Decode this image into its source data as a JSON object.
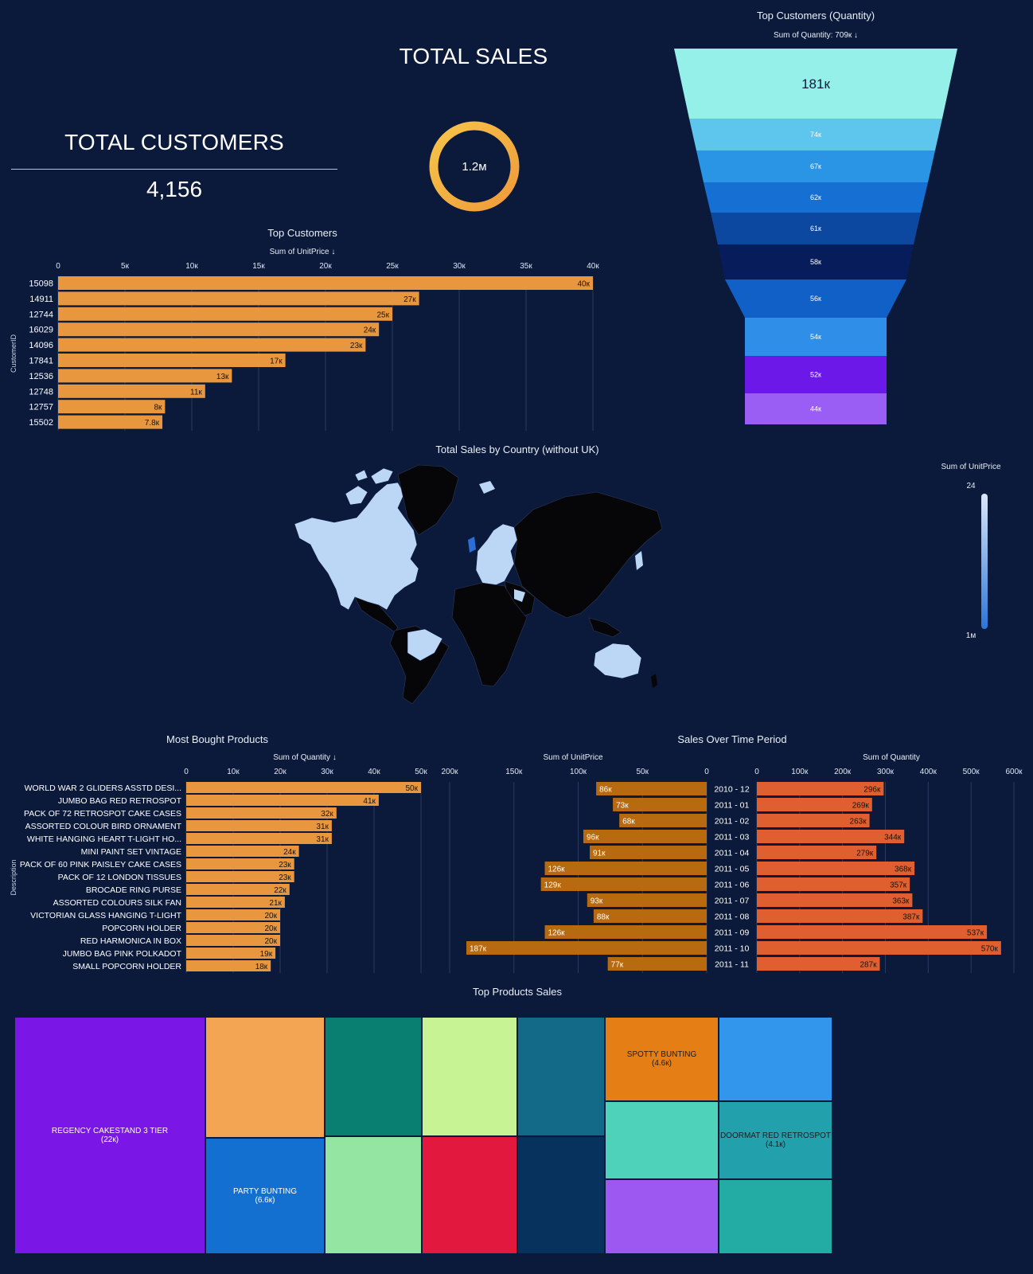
{
  "kpis": {
    "total_sales": {
      "title": "TOTAL SALES",
      "value": "1.2м"
    },
    "total_customers": {
      "title": "TOTAL CUSTOMERS",
      "value": "4,156"
    }
  },
  "colors": {
    "background": "#0b1a3a",
    "bar_orange": "#e8973e",
    "bar_dark_orange": "#b86a10",
    "bar_red_orange": "#e05f30",
    "gauge_start": "#f6c54a",
    "gauge_end": "#f09a3a",
    "map_land_dark": "#060608",
    "map_land_light": "#bcd6f5",
    "map_land_accent": "#2a6fd6"
  },
  "chart_data": [
    {
      "id": "top_customers",
      "type": "bar",
      "orientation": "horizontal",
      "title": "Top Customers",
      "subtitle": "Sum of UnitPrice ↓",
      "ylabel": "CustomerID",
      "xlim": [
        0,
        40000
      ],
      "x_ticks": [
        "0",
        "5к",
        "10к",
        "15к",
        "20к",
        "25к",
        "30к",
        "35к",
        "40к"
      ],
      "categories": [
        "15098",
        "14911",
        "12744",
        "16029",
        "14096",
        "17841",
        "12536",
        "12748",
        "12757",
        "15502"
      ],
      "values": [
        40000,
        27000,
        25000,
        24000,
        23000,
        17000,
        13000,
        11000,
        8000,
        7800
      ],
      "labels": [
        "40к",
        "27к",
        "25к",
        "24к",
        "23к",
        "17к",
        "13к",
        "11к",
        "8к",
        "7.8к"
      ]
    },
    {
      "id": "top_customers_quantity",
      "type": "funnel",
      "title": "Top Customers (Quantity)",
      "subtitle": "Sum of Quantity: 709к ↓",
      "values": [
        181000,
        74000,
        67000,
        62000,
        61000,
        58000,
        56000,
        54000,
        52000,
        44000
      ],
      "labels": [
        "181к",
        "74к",
        "67к",
        "62к",
        "61к",
        "58к",
        "56к",
        "54к",
        "52к",
        "44к"
      ],
      "colors": [
        "#95f0ea",
        "#5ec5ec",
        "#2a95e4",
        "#1670d4",
        "#0d48a0",
        "#071c5a",
        "#1060c8",
        "#2f8fe8",
        "#6c18e8",
        "#9b5ef5"
      ]
    },
    {
      "id": "sales_by_country",
      "type": "choropleth",
      "title": "Total Sales by Country (without UK)",
      "legend_title": "Sum of UnitPrice",
      "legend_min": "24",
      "legend_max": "1м"
    },
    {
      "id": "most_bought_products",
      "type": "bar",
      "orientation": "horizontal",
      "title": "Most Bought Products",
      "subtitle": "Sum of Quantity ↓",
      "ylabel": "Description",
      "xlim": [
        0,
        50000
      ],
      "x_ticks": [
        "0",
        "10к",
        "20к",
        "30к",
        "40к",
        "50к"
      ],
      "categories": [
        "WORLD WAR 2 GLIDERS ASSTD DESI...",
        "JUMBO BAG RED RETROSPOT",
        "PACK OF 72 RETROSPOT CAKE CASES",
        "ASSORTED COLOUR BIRD ORNAMENT",
        "WHITE HANGING HEART T-LIGHT HO...",
        "MINI PAINT SET VINTAGE",
        "PACK OF 60 PINK PAISLEY CAKE CASES",
        "PACK OF 12 LONDON TISSUES",
        "BROCADE RING PURSE",
        "ASSORTED COLOURS SILK FAN",
        "VICTORIAN GLASS HANGING T-LIGHT",
        "POPCORN HOLDER",
        "RED  HARMONICA IN BOX",
        "JUMBO BAG PINK POLKADOT",
        "SMALL POPCORN HOLDER"
      ],
      "values": [
        50000,
        41000,
        32000,
        31000,
        31000,
        24000,
        23000,
        23000,
        22000,
        21000,
        20000,
        20000,
        20000,
        19000,
        18000
      ],
      "labels": [
        "50к",
        "41к",
        "32к",
        "31к",
        "31к",
        "24к",
        "23к",
        "23к",
        "22к",
        "21к",
        "20к",
        "20к",
        "20к",
        "19к",
        "18к"
      ]
    },
    {
      "id": "sales_over_time",
      "type": "bar",
      "orientation": "horizontal-butterfly",
      "title": "Sales Over Time Period",
      "categories": [
        "2010 - 12",
        "2011 - 01",
        "2011 - 02",
        "2011 - 03",
        "2011 - 04",
        "2011 - 05",
        "2011 - 06",
        "2011 - 07",
        "2011 - 08",
        "2011 - 09",
        "2011 - 10",
        "2011 - 11"
      ],
      "series": [
        {
          "name": "Sum of UnitPrice",
          "xlim": [
            0,
            200000
          ],
          "x_ticks": [
            "200к",
            "150к",
            "100к",
            "50к",
            "0"
          ],
          "values": [
            86000,
            73000,
            68000,
            96000,
            91000,
            126000,
            129000,
            93000,
            88000,
            126000,
            187000,
            77000
          ],
          "labels": [
            "86к",
            "73к",
            "68к",
            "96к",
            "91к",
            "126к",
            "129к",
            "93к",
            "88к",
            "126к",
            "187к",
            "77к"
          ]
        },
        {
          "name": "Sum of Quantity",
          "xlim": [
            0,
            600000
          ],
          "x_ticks": [
            "0",
            "100к",
            "200к",
            "300к",
            "400к",
            "500к",
            "600к"
          ],
          "values": [
            296000,
            269000,
            263000,
            344000,
            279000,
            368000,
            357000,
            363000,
            387000,
            537000,
            570000,
            287000
          ],
          "labels": [
            "296к",
            "269к",
            "263к",
            "344к",
            "279к",
            "368к",
            "357к",
            "363к",
            "387к",
            "537к",
            "570к",
            "287к"
          ]
        }
      ]
    },
    {
      "id": "top_products_sales",
      "type": "treemap",
      "title": "Top Products Sales",
      "tiles": [
        {
          "label": "REGENCY CAKESTAND 3 TIER",
          "value_label": "(22к)",
          "color": "#7a16e6",
          "text_color": "#ffffff"
        },
        {
          "label": "",
          "value_label": "",
          "color": "#f4a553",
          "text_color": "#000000"
        },
        {
          "label": "PARTY BUNTING",
          "value_label": "(6.6к)",
          "color": "#1470d0",
          "text_color": "#ffffff"
        },
        {
          "label": "",
          "value_label": "",
          "color": "#097f72",
          "text_color": "#ffffff"
        },
        {
          "label": "",
          "value_label": "",
          "color": "#95e5a2",
          "text_color": "#000000"
        },
        {
          "label": "",
          "value_label": "",
          "color": "#c8f394",
          "text_color": "#000000"
        },
        {
          "label": "",
          "value_label": "",
          "color": "#e2183e",
          "text_color": "#ffffff"
        },
        {
          "label": "",
          "value_label": "",
          "color": "#126a88",
          "text_color": "#ffffff"
        },
        {
          "label": "",
          "value_label": "",
          "color": "#07325e",
          "text_color": "#ffffff"
        },
        {
          "label": "SPOTTY BUNTING",
          "value_label": "(4.6к)",
          "color": "#e67e16",
          "text_color": "#1a1a1a"
        },
        {
          "label": "",
          "value_label": "",
          "color": "#3296ec",
          "text_color": "#ffffff"
        },
        {
          "label": "",
          "value_label": "",
          "color": "#4ed2ba",
          "text_color": "#000000"
        },
        {
          "label": "DOORMAT RED RETROSPOT",
          "value_label": "(4.1к)",
          "color": "#22a1ac",
          "text_color": "#1a1a1a"
        },
        {
          "label": "",
          "value_label": "",
          "color": "#9e58f2",
          "text_color": "#ffffff"
        },
        {
          "label": "",
          "value_label": "",
          "color": "#23aca4",
          "text_color": "#ffffff"
        }
      ]
    }
  ]
}
